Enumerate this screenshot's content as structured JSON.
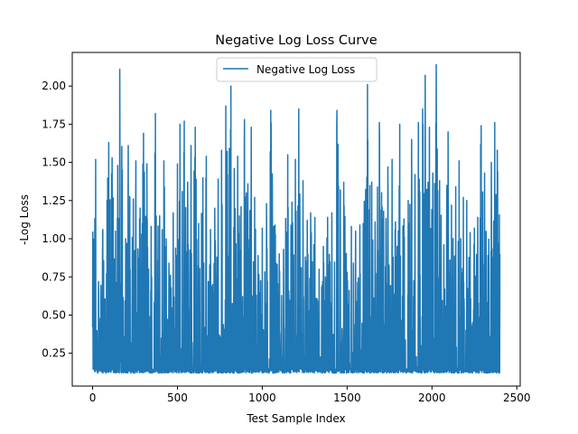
{
  "chart_data": {
    "type": "line",
    "title": "Negative Log Loss Curve",
    "xlabel": "Test Sample Index",
    "ylabel": "-Log Loss",
    "xlim": [
      -120,
      2520
    ],
    "ylim": [
      0.035,
      2.22
    ],
    "xticks": [
      0,
      500,
      1000,
      1500,
      2000,
      2500
    ],
    "xtick_labels": [
      "0",
      "500",
      "1000",
      "1500",
      "2000",
      "2500"
    ],
    "yticks": [
      0.25,
      0.5,
      0.75,
      1.0,
      1.25,
      1.5,
      1.75,
      2.0
    ],
    "ytick_labels": [
      "0.25",
      "0.50",
      "0.75",
      "1.00",
      "1.25",
      "1.50",
      "1.75",
      "2.00"
    ],
    "grid": false,
    "legend_position": "upper center",
    "series": [
      {
        "name": "Negative Log Loss",
        "color": "#1f77b4",
        "x_range": [
          0,
          2400
        ],
        "baseline_min": 0.12,
        "peaks": [
          {
            "x": 0,
            "y": 0.42
          },
          {
            "x": 10,
            "y": 0.81
          },
          {
            "x": 18,
            "y": 1.52
          },
          {
            "x": 35,
            "y": 0.72
          },
          {
            "x": 60,
            "y": 1.06
          },
          {
            "x": 85,
            "y": 1.25
          },
          {
            "x": 95,
            "y": 1.63
          },
          {
            "x": 115,
            "y": 1.53
          },
          {
            "x": 135,
            "y": 1.05
          },
          {
            "x": 160,
            "y": 2.11
          },
          {
            "x": 175,
            "y": 1.45
          },
          {
            "x": 195,
            "y": 1.0
          },
          {
            "x": 210,
            "y": 1.61
          },
          {
            "x": 240,
            "y": 1.26
          },
          {
            "x": 255,
            "y": 1.51
          },
          {
            "x": 280,
            "y": 1.2
          },
          {
            "x": 300,
            "y": 1.69
          },
          {
            "x": 320,
            "y": 1.49
          },
          {
            "x": 345,
            "y": 1.08
          },
          {
            "x": 370,
            "y": 1.82
          },
          {
            "x": 395,
            "y": 1.15
          },
          {
            "x": 420,
            "y": 1.51
          },
          {
            "x": 450,
            "y": 0.84
          },
          {
            "x": 475,
            "y": 1.17
          },
          {
            "x": 500,
            "y": 1.49
          },
          {
            "x": 515,
            "y": 1.75
          },
          {
            "x": 540,
            "y": 1.77
          },
          {
            "x": 560,
            "y": 1.37
          },
          {
            "x": 580,
            "y": 1.61
          },
          {
            "x": 605,
            "y": 1.73
          },
          {
            "x": 625,
            "y": 1.1
          },
          {
            "x": 650,
            "y": 1.4
          },
          {
            "x": 670,
            "y": 1.54
          },
          {
            "x": 695,
            "y": 1.06
          },
          {
            "x": 720,
            "y": 1.2
          },
          {
            "x": 740,
            "y": 1.39
          },
          {
            "x": 760,
            "y": 1.58
          },
          {
            "x": 785,
            "y": 1.87
          },
          {
            "x": 815,
            "y": 2.0
          },
          {
            "x": 835,
            "y": 1.46
          },
          {
            "x": 855,
            "y": 1.54
          },
          {
            "x": 875,
            "y": 1.21
          },
          {
            "x": 895,
            "y": 1.78
          },
          {
            "x": 915,
            "y": 1.36
          },
          {
            "x": 935,
            "y": 1.73
          },
          {
            "x": 955,
            "y": 1.27
          },
          {
            "x": 975,
            "y": 0.89
          },
          {
            "x": 1000,
            "y": 1.07
          },
          {
            "x": 1025,
            "y": 1.23
          },
          {
            "x": 1050,
            "y": 1.84
          },
          {
            "x": 1075,
            "y": 1.09
          },
          {
            "x": 1100,
            "y": 0.9
          },
          {
            "x": 1125,
            "y": 0.93
          },
          {
            "x": 1150,
            "y": 1.55
          },
          {
            "x": 1175,
            "y": 1.24
          },
          {
            "x": 1195,
            "y": 1.52
          },
          {
            "x": 1215,
            "y": 1.85
          },
          {
            "x": 1240,
            "y": 1.38
          },
          {
            "x": 1265,
            "y": 1.12
          },
          {
            "x": 1285,
            "y": 1.17
          },
          {
            "x": 1310,
            "y": 1.14
          },
          {
            "x": 1335,
            "y": 0.8
          },
          {
            "x": 1360,
            "y": 0.95
          },
          {
            "x": 1385,
            "y": 1.14
          },
          {
            "x": 1410,
            "y": 1.17
          },
          {
            "x": 1440,
            "y": 1.84
          },
          {
            "x": 1460,
            "y": 1.32
          },
          {
            "x": 1480,
            "y": 1.37
          },
          {
            "x": 1500,
            "y": 0.78
          },
          {
            "x": 1525,
            "y": 1.08
          },
          {
            "x": 1550,
            "y": 1.05
          },
          {
            "x": 1575,
            "y": 1.09
          },
          {
            "x": 1595,
            "y": 1.1
          },
          {
            "x": 1620,
            "y": 2.01
          },
          {
            "x": 1645,
            "y": 1.37
          },
          {
            "x": 1665,
            "y": 1.11
          },
          {
            "x": 1690,
            "y": 1.76
          },
          {
            "x": 1715,
            "y": 1.18
          },
          {
            "x": 1740,
            "y": 1.47
          },
          {
            "x": 1765,
            "y": 1.52
          },
          {
            "x": 1785,
            "y": 1.11
          },
          {
            "x": 1810,
            "y": 1.75
          },
          {
            "x": 1835,
            "y": 1.13
          },
          {
            "x": 1860,
            "y": 1.25
          },
          {
            "x": 1880,
            "y": 1.65
          },
          {
            "x": 1900,
            "y": 1.42
          },
          {
            "x": 1920,
            "y": 1.76
          },
          {
            "x": 1945,
            "y": 1.85
          },
          {
            "x": 1960,
            "y": 2.07
          },
          {
            "x": 1985,
            "y": 1.73
          },
          {
            "x": 2005,
            "y": 1.43
          },
          {
            "x": 2025,
            "y": 2.14
          },
          {
            "x": 2045,
            "y": 1.38
          },
          {
            "x": 2070,
            "y": 0.96
          },
          {
            "x": 2095,
            "y": 1.7
          },
          {
            "x": 2115,
            "y": 1.22
          },
          {
            "x": 2140,
            "y": 1.34
          },
          {
            "x": 2160,
            "y": 1.51
          },
          {
            "x": 2185,
            "y": 1.27
          },
          {
            "x": 2205,
            "y": 1.25
          },
          {
            "x": 2225,
            "y": 1.04
          },
          {
            "x": 2250,
            "y": 1.07
          },
          {
            "x": 2270,
            "y": 1.14
          },
          {
            "x": 2290,
            "y": 1.74
          },
          {
            "x": 2310,
            "y": 1.43
          },
          {
            "x": 2330,
            "y": 0.89
          },
          {
            "x": 2350,
            "y": 1.5
          },
          {
            "x": 2370,
            "y": 1.76
          },
          {
            "x": 2385,
            "y": 1.58
          },
          {
            "x": 2400,
            "y": 0.9
          }
        ]
      }
    ]
  }
}
